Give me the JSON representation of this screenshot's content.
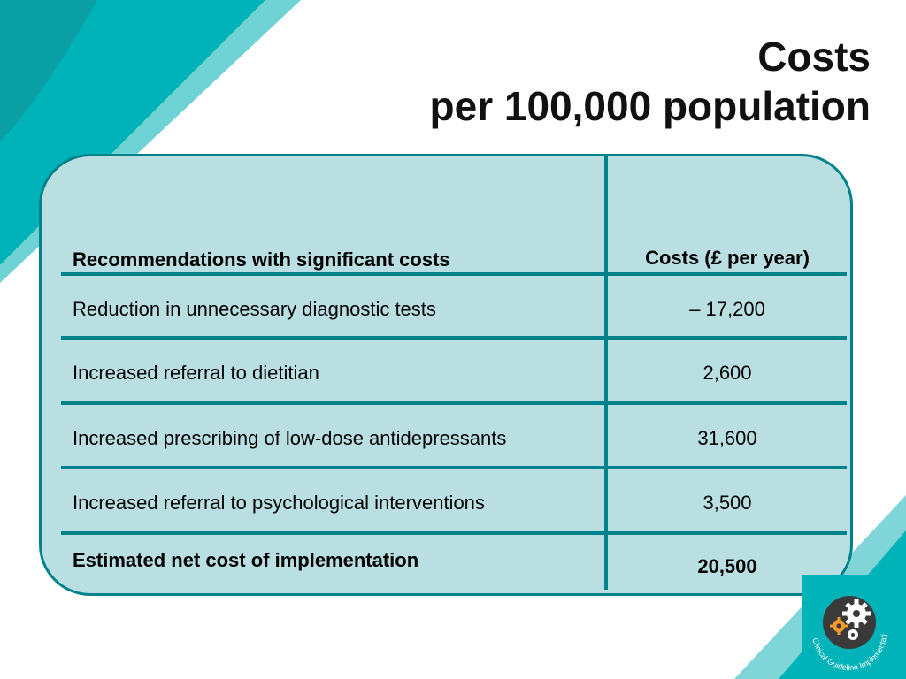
{
  "slide": {
    "title_line1": "Costs",
    "title_line2": "per 100,000 population",
    "accent_color": "#00b3b8",
    "panel_color": "#b9dfe3",
    "border_color": "#00828a"
  },
  "table": {
    "header": {
      "recommendation": "Recommendations with significant costs",
      "cost": "Costs (£ per year)"
    },
    "rows": [
      {
        "recommendation": "Reduction in unnecessary diagnostic tests",
        "cost": "– 17,200"
      },
      {
        "recommendation": "Increased referral to dietitian",
        "cost": "2,600"
      },
      {
        "recommendation": "Increased prescribing of low-dose antidepressants",
        "cost": "31,600"
      },
      {
        "recommendation": "Increased referral to psychological interventions",
        "cost": "3,500"
      }
    ],
    "total": {
      "recommendation": "Estimated net cost of implementation",
      "cost": "20,500"
    }
  },
  "logo": {
    "text": "Clinical Guideline Implementation Tools",
    "icon": "gears-icon"
  }
}
